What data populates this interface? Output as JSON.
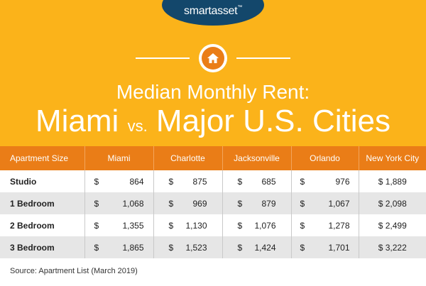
{
  "logo": {
    "text": "smartasset",
    "mark": "™"
  },
  "title": {
    "line1": "Median Monthly Rent:",
    "line2_a": "Miami",
    "line2_vs": "vs.",
    "line2_b": "Major U.S. Cities"
  },
  "table": {
    "headers": [
      "Apartment Size",
      "Miami",
      "Charlotte",
      "Jacksonville",
      "Orlando",
      "New York City"
    ],
    "rows": [
      {
        "label": "Studio",
        "values": [
          "864",
          "875",
          "685",
          "976",
          "$ 1,889"
        ]
      },
      {
        "label": "1 Bedroom",
        "values": [
          "1,068",
          "969",
          "879",
          "1,067",
          "$ 2,098"
        ]
      },
      {
        "label": "2 Bedroom",
        "values": [
          "1,355",
          "1,130",
          "1,076",
          "1,278",
          "$ 2,499"
        ]
      },
      {
        "label": "3 Bedroom",
        "values": [
          "1,865",
          "1,523",
          "1,424",
          "1,701",
          "$ 3,222"
        ]
      }
    ],
    "currency": "$"
  },
  "source": "Source: Apartment List (March 2019)",
  "colors": {
    "background": "#fbb31a",
    "header": "#ea7d17",
    "logo_bg": "#13476b"
  },
  "icons": {
    "hero": "home-icon"
  }
}
